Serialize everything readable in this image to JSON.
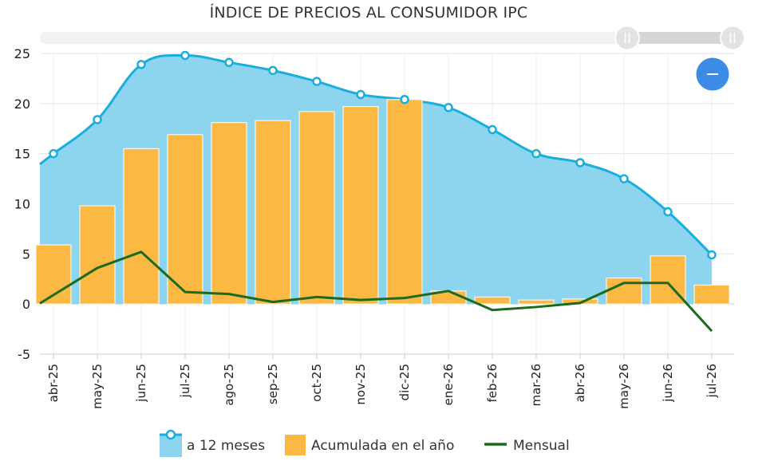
{
  "chart_data": {
    "type": "bar",
    "title": "ÍNDICE DE PRECIOS AL CONSUMIDOR IPC",
    "categories": [
      "abr-25",
      "may-25",
      "jun-25",
      "jul-25",
      "ago-25",
      "sep-25",
      "oct-25",
      "nov-25",
      "dic-25",
      "ene-26",
      "feb-26",
      "mar-26",
      "abr-26",
      "may-26",
      "jun-26",
      "jul-26"
    ],
    "ylim": [
      -5,
      25
    ],
    "yticks": [
      -5,
      0,
      5,
      10,
      15,
      20,
      25
    ],
    "grid": true,
    "legend_position": "bottom",
    "series": [
      {
        "name": "a 12 meses",
        "type": "area",
        "color": "#1AAEDD",
        "fill": "#8DD5EE",
        "values": [
          15.0,
          18.4,
          23.9,
          24.8,
          24.1,
          23.3,
          22.2,
          20.9,
          20.4,
          19.6,
          17.4,
          15.0,
          14.1,
          12.5,
          9.2,
          4.9
        ]
      },
      {
        "name": "Acumulada en el año",
        "type": "bar",
        "color": "#FBB843",
        "values": [
          5.9,
          9.8,
          15.5,
          16.9,
          18.1,
          18.3,
          19.2,
          19.7,
          20.4,
          1.3,
          0.7,
          0.4,
          0.5,
          2.6,
          4.8,
          1.9
        ]
      },
      {
        "name": "Mensual",
        "type": "line",
        "color": "#1B6B1B",
        "values": [
          0.9,
          3.6,
          5.2,
          1.2,
          1.0,
          0.2,
          0.7,
          0.4,
          0.6,
          1.3,
          -0.6,
          -0.3,
          0.1,
          2.1,
          2.1,
          -2.7
        ]
      }
    ]
  },
  "controls": {
    "zoom_out_label": "−"
  }
}
